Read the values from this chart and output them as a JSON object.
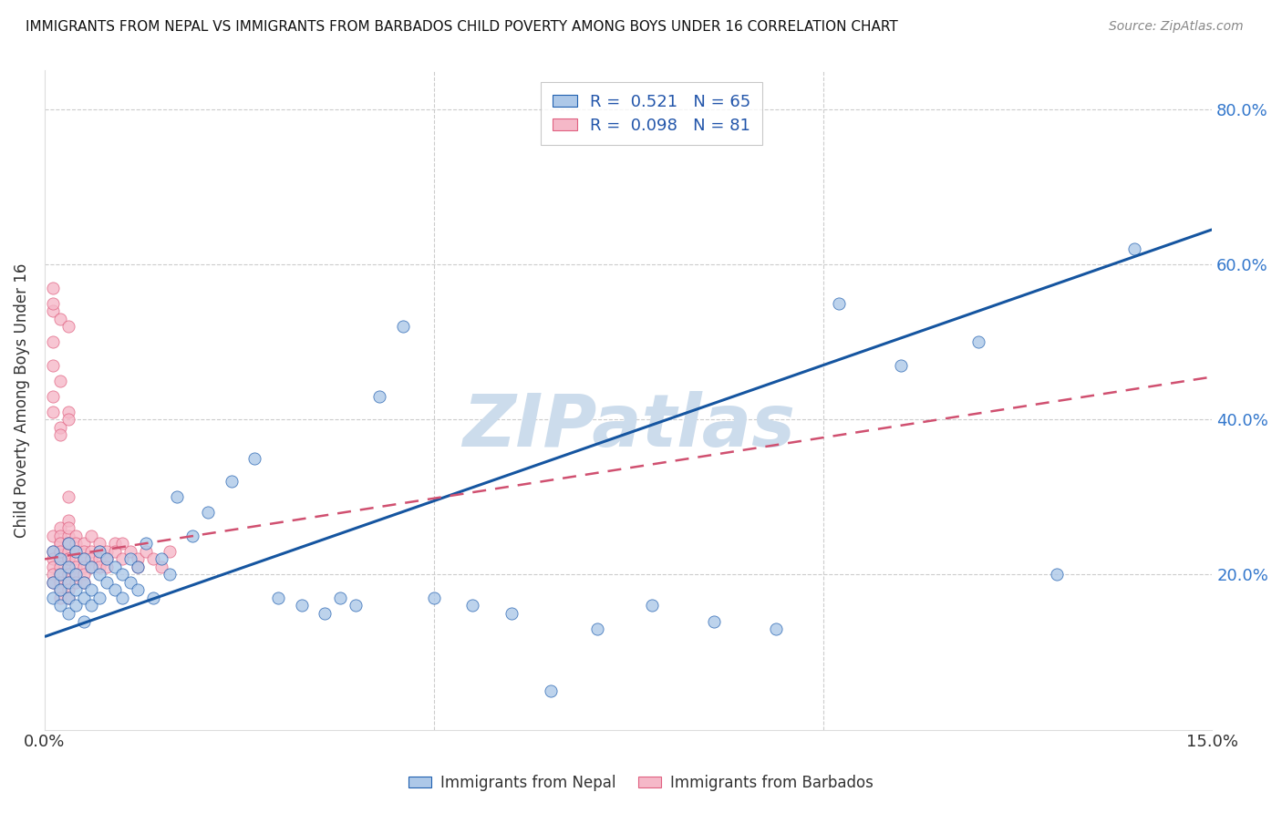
{
  "title": "IMMIGRANTS FROM NEPAL VS IMMIGRANTS FROM BARBADOS CHILD POVERTY AMONG BOYS UNDER 16 CORRELATION CHART",
  "source": "Source: ZipAtlas.com",
  "ylabel": "Child Poverty Among Boys Under 16",
  "xlim": [
    0,
    0.15
  ],
  "ylim": [
    0,
    0.85
  ],
  "ytick_vals": [
    0.0,
    0.2,
    0.4,
    0.6,
    0.8
  ],
  "ytick_labels_right": [
    "",
    "20.0%",
    "40.0%",
    "60.0%",
    "80.0%"
  ],
  "xtick_vals": [
    0.0,
    0.05,
    0.1,
    0.15
  ],
  "xtick_labels": [
    "0.0%",
    "",
    "",
    "15.0%"
  ],
  "nepal_color": "#adc8e8",
  "barbados_color": "#f5b8c8",
  "nepal_edge_color": "#2060b0",
  "barbados_edge_color": "#e06080",
  "nepal_line_color": "#1555a0",
  "barbados_line_color": "#d05070",
  "nepal_R": 0.521,
  "nepal_N": 65,
  "barbados_R": 0.098,
  "barbados_N": 81,
  "nepal_line_x0": 0.0,
  "nepal_line_y0": 0.12,
  "nepal_line_x1": 0.15,
  "nepal_line_y1": 0.645,
  "barbados_line_x0": 0.0,
  "barbados_line_y0": 0.22,
  "barbados_line_x1": 0.15,
  "barbados_line_y1": 0.455,
  "watermark": "ZIPatlas",
  "watermark_color": "#ccdcec",
  "nepal_x": [
    0.001,
    0.001,
    0.001,
    0.002,
    0.002,
    0.002,
    0.002,
    0.003,
    0.003,
    0.003,
    0.003,
    0.003,
    0.004,
    0.004,
    0.004,
    0.004,
    0.005,
    0.005,
    0.005,
    0.005,
    0.006,
    0.006,
    0.006,
    0.007,
    0.007,
    0.007,
    0.008,
    0.008,
    0.009,
    0.009,
    0.01,
    0.01,
    0.011,
    0.011,
    0.012,
    0.012,
    0.013,
    0.014,
    0.015,
    0.016,
    0.017,
    0.019,
    0.021,
    0.024,
    0.027,
    0.03,
    0.033,
    0.036,
    0.038,
    0.04,
    0.043,
    0.046,
    0.05,
    0.055,
    0.06,
    0.065,
    0.071,
    0.078,
    0.086,
    0.094,
    0.102,
    0.11,
    0.12,
    0.13,
    0.14
  ],
  "nepal_y": [
    0.23,
    0.19,
    0.17,
    0.22,
    0.2,
    0.18,
    0.16,
    0.21,
    0.24,
    0.19,
    0.17,
    0.15,
    0.23,
    0.2,
    0.18,
    0.16,
    0.22,
    0.19,
    0.17,
    0.14,
    0.21,
    0.18,
    0.16,
    0.23,
    0.2,
    0.17,
    0.22,
    0.19,
    0.21,
    0.18,
    0.2,
    0.17,
    0.22,
    0.19,
    0.21,
    0.18,
    0.24,
    0.17,
    0.22,
    0.2,
    0.3,
    0.25,
    0.28,
    0.32,
    0.35,
    0.17,
    0.16,
    0.15,
    0.17,
    0.16,
    0.43,
    0.52,
    0.17,
    0.16,
    0.15,
    0.05,
    0.13,
    0.16,
    0.14,
    0.13,
    0.55,
    0.47,
    0.5,
    0.2,
    0.62
  ],
  "barbados_x": [
    0.001,
    0.001,
    0.001,
    0.001,
    0.001,
    0.001,
    0.001,
    0.001,
    0.001,
    0.002,
    0.002,
    0.002,
    0.002,
    0.002,
    0.002,
    0.002,
    0.002,
    0.002,
    0.002,
    0.002,
    0.002,
    0.003,
    0.003,
    0.003,
    0.003,
    0.003,
    0.003,
    0.003,
    0.003,
    0.003,
    0.003,
    0.003,
    0.003,
    0.003,
    0.003,
    0.004,
    0.004,
    0.004,
    0.004,
    0.004,
    0.004,
    0.004,
    0.005,
    0.005,
    0.005,
    0.005,
    0.005,
    0.005,
    0.006,
    0.006,
    0.006,
    0.006,
    0.007,
    0.007,
    0.007,
    0.007,
    0.008,
    0.008,
    0.008,
    0.009,
    0.009,
    0.01,
    0.01,
    0.011,
    0.012,
    0.012,
    0.013,
    0.014,
    0.015,
    0.016,
    0.001,
    0.001,
    0.002,
    0.002,
    0.003,
    0.003,
    0.001,
    0.002,
    0.001,
    0.002,
    0.003
  ],
  "barbados_y": [
    0.57,
    0.54,
    0.5,
    0.25,
    0.23,
    0.22,
    0.21,
    0.2,
    0.19,
    0.26,
    0.24,
    0.23,
    0.22,
    0.21,
    0.2,
    0.19,
    0.18,
    0.17,
    0.25,
    0.24,
    0.23,
    0.27,
    0.25,
    0.24,
    0.23,
    0.22,
    0.21,
    0.2,
    0.19,
    0.18,
    0.17,
    0.3,
    0.26,
    0.24,
    0.22,
    0.25,
    0.24,
    0.23,
    0.22,
    0.21,
    0.2,
    0.19,
    0.24,
    0.23,
    0.22,
    0.21,
    0.2,
    0.19,
    0.25,
    0.23,
    0.22,
    0.21,
    0.24,
    0.23,
    0.22,
    0.21,
    0.23,
    0.22,
    0.21,
    0.24,
    0.23,
    0.24,
    0.22,
    0.23,
    0.22,
    0.21,
    0.23,
    0.22,
    0.21,
    0.23,
    0.43,
    0.41,
    0.39,
    0.38,
    0.41,
    0.4,
    0.47,
    0.45,
    0.55,
    0.53,
    0.52
  ]
}
